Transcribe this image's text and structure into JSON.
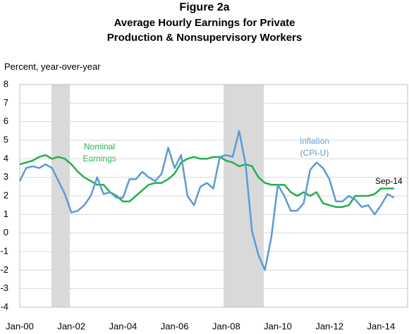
{
  "chart_data": {
    "type": "line",
    "title": "Figure 2a",
    "subtitle": "Average Hourly Earnings for Private Production & Nonsupervisory Workers",
    "y_label": "Percent, year-over-year",
    "categories": [
      "Jan-00",
      null,
      null,
      null,
      null,
      null,
      null,
      null,
      "Jan-02",
      null,
      null,
      null,
      null,
      null,
      null,
      null,
      "Jan-04",
      null,
      null,
      null,
      null,
      null,
      null,
      null,
      "Jan-06",
      null,
      null,
      null,
      null,
      null,
      null,
      null,
      "Jan-08",
      null,
      null,
      null,
      null,
      null,
      null,
      null,
      "Jan-10",
      null,
      null,
      null,
      null,
      null,
      null,
      null,
      "Jan-12",
      null,
      null,
      null,
      null,
      null,
      null,
      null,
      "Jan-14",
      null,
      null
    ],
    "series": [
      {
        "name": "Nominal Earnings",
        "color": "#22b04b",
        "values": [
          3.7,
          3.8,
          3.9,
          4.1,
          4.2,
          4.0,
          4.1,
          4.0,
          3.7,
          3.3,
          3.0,
          2.8,
          2.6,
          2.6,
          2.2,
          2.0,
          1.7,
          1.7,
          2.0,
          2.3,
          2.6,
          2.7,
          2.7,
          2.9,
          3.2,
          3.8,
          4.0,
          4.1,
          4.0,
          4.0,
          4.1,
          4.1,
          3.9,
          3.8,
          3.6,
          3.7,
          3.6,
          3.0,
          2.7,
          2.6,
          2.6,
          2.6,
          2.2,
          2.0,
          2.2,
          2.0,
          2.2,
          1.6,
          1.5,
          1.4,
          1.4,
          1.5,
          2.0,
          2.0,
          2.0,
          2.1,
          2.4,
          2.4,
          2.4
        ]
      },
      {
        "name": "Inflation (CPI-U)",
        "color": "#5b9bd5",
        "values": [
          2.8,
          3.5,
          3.6,
          3.5,
          3.7,
          3.5,
          2.8,
          2.1,
          1.1,
          1.2,
          1.5,
          2.0,
          3.0,
          2.1,
          2.2,
          1.9,
          1.9,
          2.9,
          2.9,
          3.3,
          3.0,
          2.8,
          3.2,
          4.6,
          3.5,
          4.2,
          2.0,
          1.5,
          2.5,
          2.7,
          2.4,
          4.1,
          4.2,
          4.1,
          5.5,
          3.7,
          0.1,
          -1.2,
          -2.0,
          -0.2,
          2.6,
          2.0,
          1.2,
          1.2,
          1.6,
          3.4,
          3.8,
          3.5,
          2.9,
          1.7,
          1.7,
          2.0,
          1.8,
          1.4,
          1.5,
          1.0,
          1.5,
          2.1,
          1.9
        ]
      }
    ],
    "annotations": [
      "Sep-14"
    ],
    "ylim": [
      -4,
      8
    ],
    "yticks": [
      -4,
      -3,
      -2,
      -1,
      0,
      1,
      2,
      3,
      4,
      5,
      6,
      7,
      8
    ],
    "grid": true
  }
}
